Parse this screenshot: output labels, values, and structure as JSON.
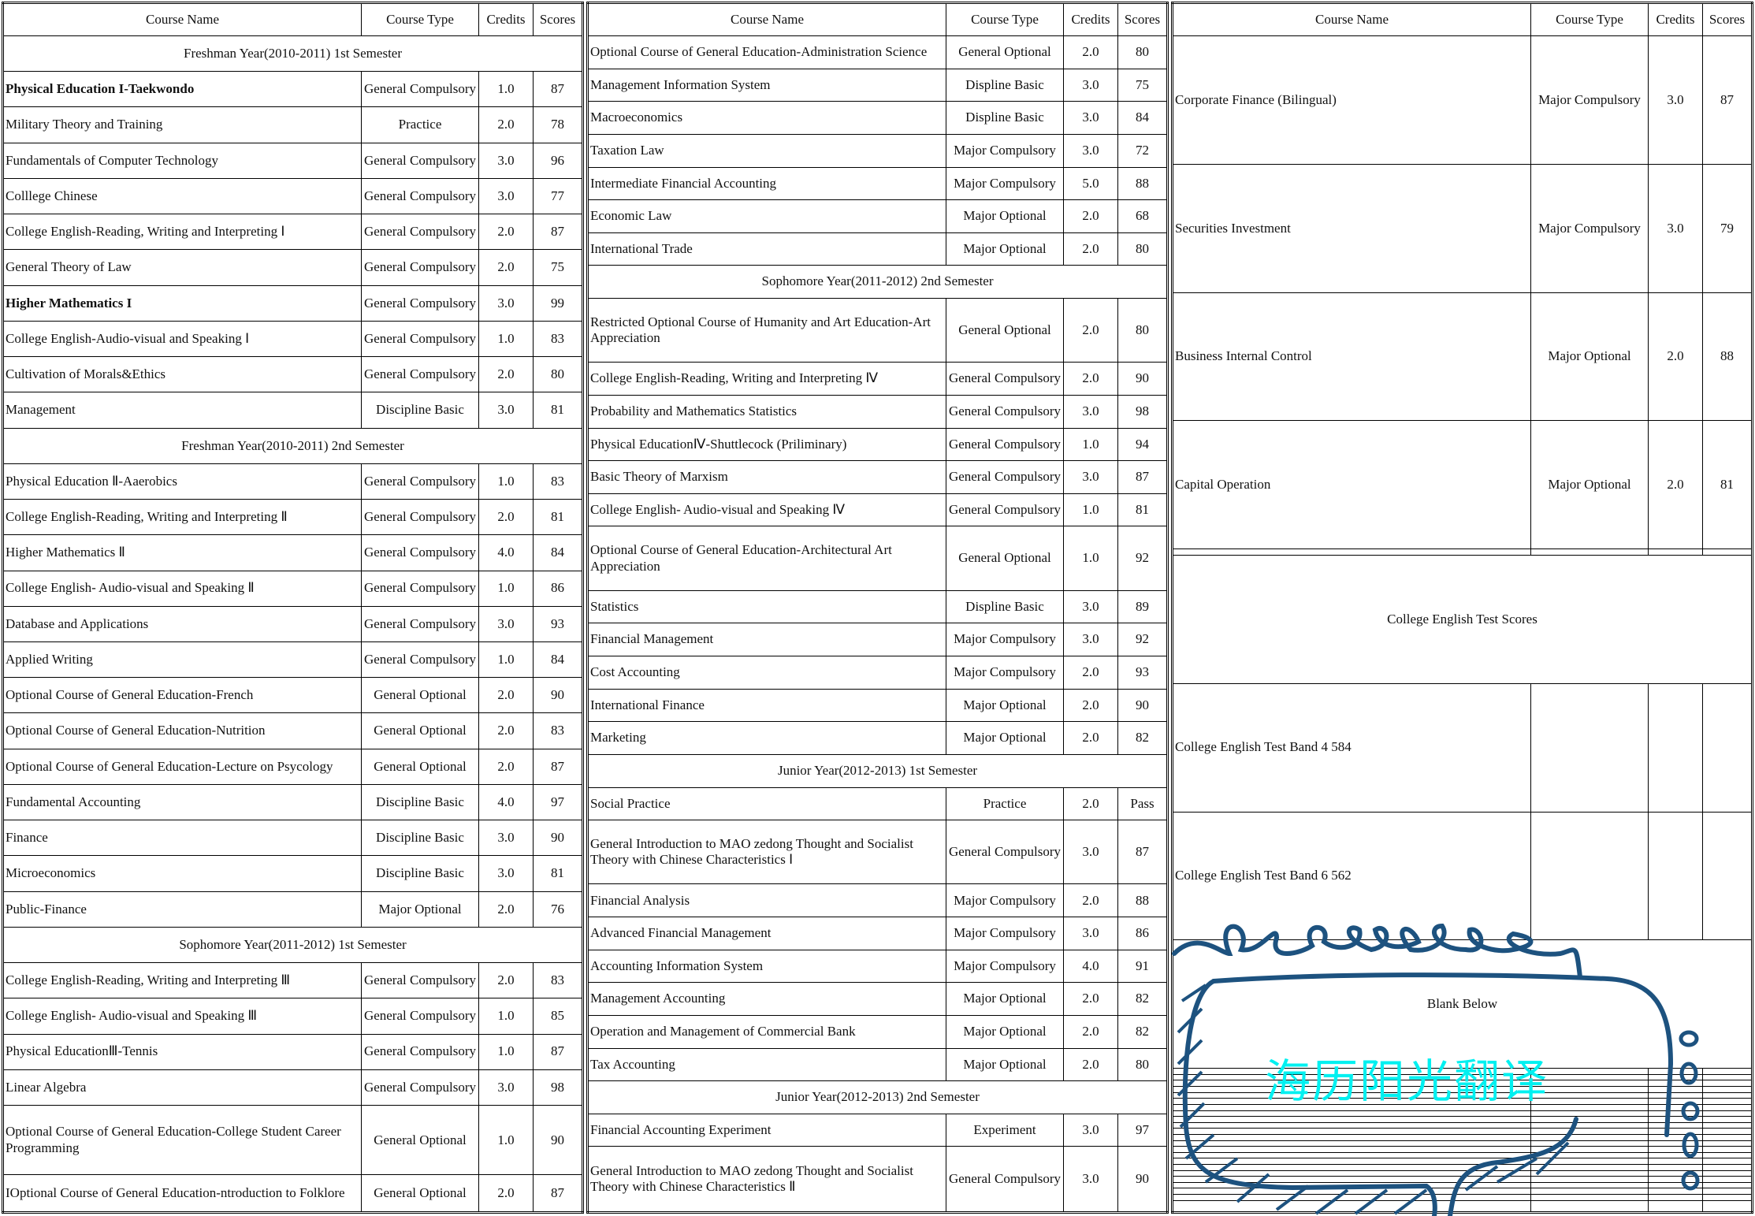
{
  "headers": {
    "name": "Course Name",
    "type": "Course Type",
    "credits": "Credits",
    "scores": "Scores"
  },
  "tables": [
    {
      "rows": [
        {
          "section": "Freshman Year(2010-2011) 1st Semester"
        },
        {
          "name": "Physical Education I-Taekwondo",
          "type": "General Compulsory",
          "credits": "1.0",
          "score": "87",
          "bold": true
        },
        {
          "name": "Military Theory and Training",
          "type": "Practice",
          "credits": "2.0",
          "score": "78"
        },
        {
          "name": "Fundamentals of Computer Technology",
          "type": "General Compulsory",
          "credits": "3.0",
          "score": "96"
        },
        {
          "name": "Colllege Chinese",
          "type": "General Compulsory",
          "credits": "3.0",
          "score": "77"
        },
        {
          "name": "College English-Reading, Writing and Interpreting Ⅰ",
          "type": "General Compulsory",
          "credits": "2.0",
          "score": "87"
        },
        {
          "name": "General Theory of Law",
          "type": "General Compulsory",
          "credits": "2.0",
          "score": "75"
        },
        {
          "name": "Higher Mathematics I",
          "type": "General Compulsory",
          "credits": "3.0",
          "score": "99",
          "bold": true
        },
        {
          "name": "College English-Audio-visual and Speaking Ⅰ",
          "type": "General Compulsory",
          "credits": "1.0",
          "score": "83"
        },
        {
          "name": "Cultivation of Morals&Ethics",
          "type": "General Compulsory",
          "credits": "2.0",
          "score": "80"
        },
        {
          "name": "Management",
          "type": "Discipline Basic",
          "credits": "3.0",
          "score": "81"
        },
        {
          "section": "Freshman Year(2010-2011) 2nd Semester"
        },
        {
          "name": "Physical Education Ⅱ-Aaerobics",
          "type": "General Compulsory",
          "credits": "1.0",
          "score": "83"
        },
        {
          "name": "College English-Reading, Writing and Interpreting Ⅱ",
          "type": "General Compulsory",
          "credits": "2.0",
          "score": "81"
        },
        {
          "name": "Higher Mathematics Ⅱ",
          "type": "General Compulsory",
          "credits": "4.0",
          "score": "84"
        },
        {
          "name": "College English- Audio-visual and Speaking Ⅱ",
          "type": "General Compulsory",
          "credits": "1.0",
          "score": "86"
        },
        {
          "name": "Database and Applications",
          "type": "General Compulsory",
          "credits": "3.0",
          "score": "93"
        },
        {
          "name": "Applied Writing",
          "type": "General Compulsory",
          "credits": "1.0",
          "score": "84"
        },
        {
          "name": "Optional Course of General Education-French",
          "type": "General Optional",
          "credits": "2.0",
          "score": "90"
        },
        {
          "name": "Optional Course of General Education-Nutrition",
          "type": "General Optional",
          "credits": "2.0",
          "score": "83"
        },
        {
          "name": "Optional Course of General Education-Lecture on Psycology",
          "type": "General Optional",
          "credits": "2.0",
          "score": "87"
        },
        {
          "name": "Fundamental  Accounting",
          "type": "Discipline Basic",
          "credits": "4.0",
          "score": "97"
        },
        {
          "name": "Finance",
          "type": "Discipline Basic",
          "credits": "3.0",
          "score": "90"
        },
        {
          "name": "Microeconomics",
          "type": "Discipline Basic",
          "credits": "3.0",
          "score": "81"
        },
        {
          "name": "Public-Finance",
          "type": "Major Optional",
          "credits": "2.0",
          "score": "76"
        },
        {
          "section": "Sophomore Year(2011-2012) 1st Semester"
        },
        {
          "name": "College English-Reading, Writing and Interpreting Ⅲ",
          "type": "General Compulsory",
          "credits": "2.0",
          "score": "83"
        },
        {
          "name": "College English- Audio-visual and Speaking Ⅲ",
          "type": "General Compulsory",
          "credits": "1.0",
          "score": "85"
        },
        {
          "name": "Physical EducationⅢ-Tennis",
          "type": "General Compulsory",
          "credits": "1.0",
          "score": "87"
        },
        {
          "name": "Linear Algebra",
          "type": "General Compulsory",
          "credits": "3.0",
          "score": "98"
        },
        {
          "name": "Optional Course of General Education-College Student Career Programming",
          "type": "General Optional",
          "credits": "1.0",
          "score": "90"
        },
        {
          "name": "IOptional Course of General Education-ntroduction to Folklore",
          "type": "General Optional",
          "credits": "2.0",
          "score": "87"
        }
      ]
    },
    {
      "rows": [
        {
          "name": "Optional Course of General Education-Administration Science",
          "type": "General Optional",
          "credits": "2.0",
          "score": "80"
        },
        {
          "name": "Management Information System",
          "type": "Displine Basic",
          "credits": "3.0",
          "score": "75"
        },
        {
          "name": "Macroeconomics",
          "type": "Displine Basic",
          "credits": "3.0",
          "score": "84"
        },
        {
          "name": "Taxation Law",
          "type": "Major Compulsory",
          "credits": "3.0",
          "score": "72"
        },
        {
          "name": "Intermediate Financial Accounting",
          "type": "Major Compulsory",
          "credits": "5.0",
          "score": "88"
        },
        {
          "name": "Economic Law",
          "type": "Major Optional",
          "credits": "2.0",
          "score": "68"
        },
        {
          "name": "International Trade",
          "type": "Major Optional",
          "credits": "2.0",
          "score": "80"
        },
        {
          "section": "Sophomore Year(2011-2012) 2nd Semester"
        },
        {
          "name": "Restricted Optional Course of  Humanity and Art Education-Art Appreciation",
          "type": "General Optional",
          "credits": "2.0",
          "score": "80"
        },
        {
          "name": "College English-Reading, Writing and Interpreting Ⅳ",
          "type": "General Compulsory",
          "credits": "2.0",
          "score": "90"
        },
        {
          "name": "Probability and Mathematics Statistics",
          "type": "General Compulsory",
          "credits": "3.0",
          "score": "98"
        },
        {
          "name": "Physical EducationⅣ-Shuttlecock (Priliminary)",
          "type": "General Compulsory",
          "credits": "1.0",
          "score": "94"
        },
        {
          "name": "Basic Theory of Marxism",
          "type": "General Compulsory",
          "credits": "3.0",
          "score": "87"
        },
        {
          "name": "College English- Audio-visual and Speaking Ⅳ",
          "type": "General Compulsory",
          "credits": "1.0",
          "score": "81"
        },
        {
          "name": "Optional Course of General Education-Architectural Art Appreciation",
          "type": "General Optional",
          "credits": "1.0",
          "score": "92"
        },
        {
          "name": "Statistics",
          "type": "Displine Basic",
          "credits": "3.0",
          "score": "89"
        },
        {
          "name": "Financial Management",
          "type": "Major Compulsory",
          "credits": "3.0",
          "score": "92"
        },
        {
          "name": "Cost Accounting",
          "type": "Major Compulsory",
          "credits": "2.0",
          "score": "93"
        },
        {
          "name": "International Finance",
          "type": "Major Optional",
          "credits": "2.0",
          "score": "90"
        },
        {
          "name": "Marketing",
          "type": "Major Optional",
          "credits": "2.0",
          "score": "82"
        },
        {
          "section": "Junior Year(2012-2013) 1st Semester"
        },
        {
          "name": "Social Practice",
          "type": "Practice",
          "credits": "2.0",
          "score": "Pass"
        },
        {
          "name": "General Introduction to MAO zedong Thought and Socialist Theory with Chinese Characteristics Ⅰ",
          "type": "General Compulsory",
          "credits": "3.0",
          "score": "87"
        },
        {
          "name": "Financial Analysis",
          "type": "Major Compulsory",
          "credits": "2.0",
          "score": "88"
        },
        {
          "name": "Advanced Financial Management",
          "type": "Major Compulsory",
          "credits": "3.0",
          "score": "86"
        },
        {
          "name": "Accounting Information System",
          "type": "Major Compulsory",
          "credits": "4.0",
          "score": "91"
        },
        {
          "name": "Management Accounting",
          "type": "Major Optional",
          "credits": "2.0",
          "score": "82"
        },
        {
          "name": "Operation and Management of Commercial Bank",
          "type": "Major Optional",
          "credits": "2.0",
          "score": "82"
        },
        {
          "name": "Tax Accounting",
          "type": "Major Optional",
          "credits": "2.0",
          "score": "80"
        },
        {
          "section": "Junior Year(2012-2013) 2nd Semester"
        },
        {
          "name": "Financial Accounting Experiment",
          "type": "Experiment",
          "credits": "3.0",
          "score": "97"
        },
        {
          "name": "General Introduction to MAO zedong Thought and Socialist Theory with Chinese Characteristics Ⅱ",
          "type": "General Compulsory",
          "credits": "3.0",
          "score": "90"
        }
      ]
    },
    {
      "rows": [
        {
          "name": "Corporate Finance (Bilingual)",
          "type": "Major Compulsory",
          "credits": "3.0",
          "score": "87"
        },
        {
          "name": "Securities Investment",
          "type": "Major Compulsory",
          "credits": "3.0",
          "score": "79"
        },
        {
          "name": "Business Internal Control",
          "type": "Major Optional",
          "credits": "2.0",
          "score": "88"
        },
        {
          "name": "Capital Operation",
          "type": "Major Optional",
          "credits": "2.0",
          "score": "81"
        },
        {
          "name": "",
          "type": "",
          "credits": "",
          "score": ""
        },
        {
          "section": "College English Test Scores"
        },
        {
          "name": "College English Test Band 4     584",
          "type": "",
          "credits": "",
          "score": ""
        },
        {
          "name": "College English Test Band 6     562",
          "type": "",
          "credits": "",
          "score": ""
        },
        {
          "section": "Blank Below"
        },
        {
          "name": "",
          "type": "",
          "credits": "",
          "score": ""
        },
        {
          "name": "",
          "type": "",
          "credits": "",
          "score": ""
        },
        {
          "name": "",
          "type": "",
          "credits": "",
          "score": ""
        },
        {
          "name": "",
          "type": "",
          "credits": "",
          "score": ""
        },
        {
          "name": "",
          "type": "",
          "credits": "",
          "score": ""
        },
        {
          "name": "",
          "type": "",
          "credits": "",
          "score": ""
        },
        {
          "name": "",
          "type": "",
          "credits": "",
          "score": ""
        },
        {
          "name": "",
          "type": "",
          "credits": "",
          "score": ""
        },
        {
          "name": "",
          "type": "",
          "credits": "",
          "score": ""
        },
        {
          "name": "",
          "type": "",
          "credits": "",
          "score": ""
        },
        {
          "name": "",
          "type": "",
          "credits": "",
          "score": ""
        },
        {
          "name": "",
          "type": "",
          "credits": "",
          "score": ""
        },
        {
          "name": "",
          "type": "",
          "credits": "",
          "score": ""
        },
        {
          "name": "",
          "type": "",
          "credits": "",
          "score": ""
        },
        {
          "name": "",
          "type": "",
          "credits": "",
          "score": ""
        },
        {
          "name": "",
          "type": "",
          "credits": "",
          "score": ""
        },
        {
          "name": "",
          "type": "",
          "credits": "",
          "score": ""
        },
        {
          "name": "",
          "type": "",
          "credits": "",
          "score": ""
        },
        {
          "name": "",
          "type": "",
          "credits": "",
          "score": ""
        },
        {
          "name": "",
          "type": "",
          "credits": "",
          "score": ""
        },
        {
          "name": "",
          "type": "",
          "credits": "",
          "score": ""
        },
        {
          "name": "",
          "type": "",
          "credits": "",
          "score": ""
        },
        {
          "name": "",
          "type": "",
          "credits": "",
          "score": ""
        }
      ]
    }
  ],
  "watermark": {
    "text": "海历阳光翻译",
    "text_color": "#00f0f0",
    "frame_color": "#1d527f",
    "icon": "speech-bubble-icon"
  }
}
